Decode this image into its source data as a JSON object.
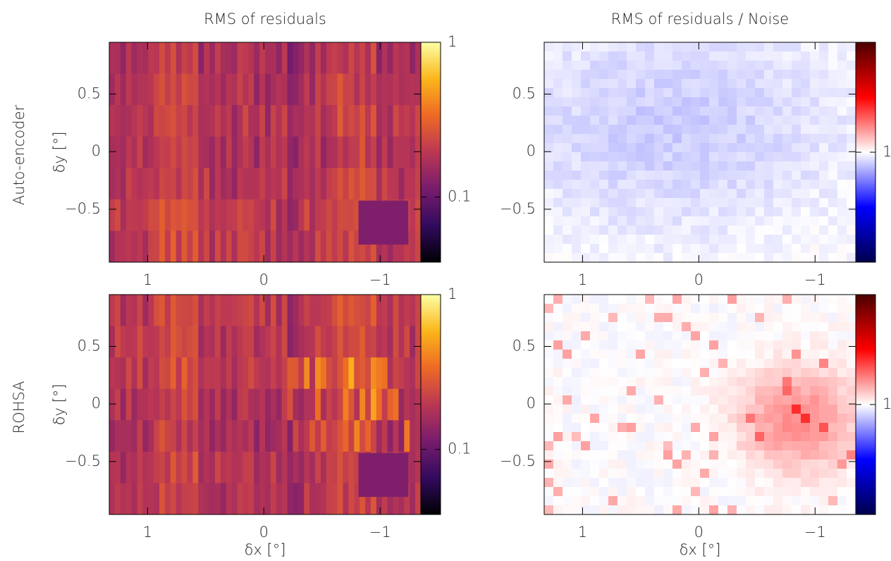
{
  "chart_data": [
    {
      "type": "heatmap",
      "title": "RMS of residuals",
      "row_label": "Auto-encoder",
      "ylabel": "δy [°]",
      "xlim": [
        1.33,
        -1.35
      ],
      "ylim": [
        -0.96,
        0.95
      ],
      "xticks": [
        1,
        0,
        {
          "value": -1,
          "label": "−1"
        }
      ],
      "yticks": [
        {
          "value": -0.5,
          "label": "−0.5"
        },
        0,
        0.5
      ],
      "colorbar": {
        "clim": [
          0.038,
          1
        ],
        "log": true,
        "ticks": [
          0.1,
          1
        ],
        "colormap": [
          "#000004",
          "#320a5e",
          "#781c6d",
          "#bb3754",
          "#ed6925",
          "#fbb61a",
          "#fcffa4"
        ]
      }
    },
    {
      "type": "heatmap",
      "title": "RMS of residuals / Noise",
      "xlim": [
        1.33,
        -1.35
      ],
      "ylim": [
        -0.96,
        0.95
      ],
      "xticks": [
        1,
        0,
        {
          "value": -1,
          "label": "−1"
        }
      ],
      "yticks": [
        {
          "value": -0.5,
          "label": "−0.5"
        },
        0,
        0.5
      ],
      "colorbar": {
        "clim": [
          0,
          2
        ],
        "log": false,
        "ticks": [
          1
        ],
        "colormap": [
          "#00004c",
          "#0000ff",
          "#ffffff",
          "#ff0000",
          "#4c0000"
        ]
      }
    },
    {
      "type": "heatmap",
      "row_label": "ROHSA",
      "ylabel": "δy [°]",
      "xlabel": "δx [°]",
      "xlim": [
        1.33,
        -1.35
      ],
      "ylim": [
        -0.96,
        0.95
      ],
      "xticks": [
        1,
        0,
        {
          "value": -1,
          "label": "−1"
        }
      ],
      "yticks": [
        {
          "value": -0.5,
          "label": "−0.5"
        },
        0,
        0.5
      ],
      "colorbar": {
        "clim": [
          0.038,
          1
        ],
        "log": true,
        "ticks": [
          0.1,
          1
        ],
        "colormap": [
          "#000004",
          "#320a5e",
          "#781c6d",
          "#bb3754",
          "#ed6925",
          "#fbb61a",
          "#fcffa4"
        ]
      }
    },
    {
      "type": "heatmap",
      "xlabel": "δx [°]",
      "xlim": [
        1.33,
        -1.35
      ],
      "ylim": [
        -0.96,
        0.95
      ],
      "xticks": [
        1,
        0,
        {
          "value": -1,
          "label": "−1"
        }
      ],
      "yticks": [
        {
          "value": -0.5,
          "label": "−0.5"
        },
        0,
        0.5
      ],
      "colorbar": {
        "clim": [
          0,
          2
        ],
        "log": false,
        "ticks": [
          1
        ],
        "colormap": [
          "#00004c",
          "#0000ff",
          "#ffffff",
          "#ff0000",
          "#4c0000"
        ]
      }
    }
  ]
}
